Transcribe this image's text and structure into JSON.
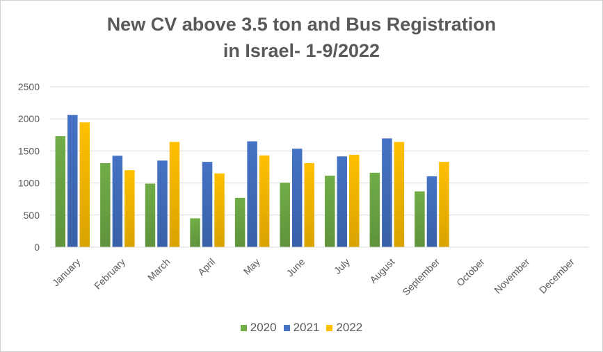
{
  "chart_data": {
    "type": "bar",
    "title_lines": [
      "New CV above 3.5 ton and Bus Registration",
      "in Israel- 1-9/2022"
    ],
    "categories": [
      "January",
      "February",
      "March",
      "April",
      "May",
      "June",
      "July",
      "August",
      "September",
      "October",
      "November",
      "December"
    ],
    "series": [
      {
        "name": "2020",
        "color": "#70ad47",
        "values": [
          1730,
          1310,
          990,
          450,
          770,
          1005,
          1115,
          1160,
          870,
          null,
          null,
          null
        ]
      },
      {
        "name": "2021",
        "color": "#4472c4",
        "values": [
          2060,
          1425,
          1350,
          1330,
          1650,
          1535,
          1415,
          1695,
          1105,
          null,
          null,
          null
        ]
      },
      {
        "name": "2022",
        "color": "#ffc000",
        "values": [
          1945,
          1200,
          1640,
          1150,
          1430,
          1310,
          1440,
          1640,
          1330,
          null,
          null,
          null
        ]
      }
    ],
    "ylim": [
      0,
      2500
    ],
    "yticks": [
      "0",
      "500",
      "1000",
      "1500",
      "2000",
      "2500"
    ],
    "grid": true,
    "legend_position": "bottom"
  }
}
